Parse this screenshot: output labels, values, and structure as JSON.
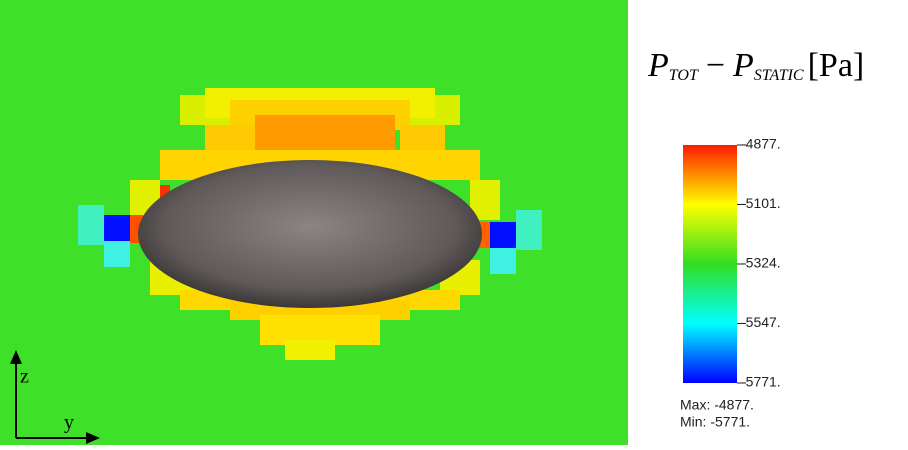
{
  "legend": {
    "title": {
      "p1": "P",
      "sub1": "TOT",
      "op": "−",
      "p2": "P",
      "sub2": "STATIC",
      "unit": "[Pa]"
    },
    "ticks": [
      "-4877.",
      "-5101.",
      "-5324.",
      "-5547.",
      "-5771."
    ],
    "max": "Max: -4877.",
    "min": "Min: -5771."
  },
  "axes": {
    "vertical": "z",
    "horizontal": "y"
  }
}
